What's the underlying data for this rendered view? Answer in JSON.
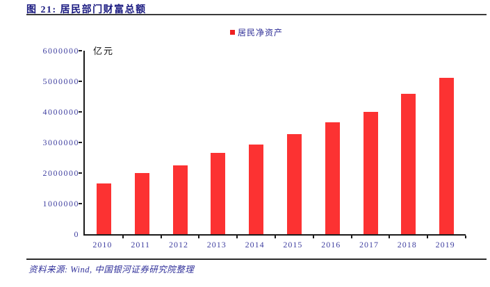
{
  "page": {
    "title": "图 21: 居民部门财富总额",
    "source_note": "资料来源: Wind, 中国银河证券研究院整理"
  },
  "chart_data": {
    "type": "bar",
    "title": "图 21: 居民部门财富总额",
    "unit_label": "亿元",
    "legend": {
      "position": "top-center",
      "entries": [
        "居民净资产"
      ]
    },
    "categories": [
      "2010",
      "2011",
      "2012",
      "2013",
      "2014",
      "2015",
      "2016",
      "2017",
      "2018",
      "2019"
    ],
    "series": [
      {
        "name": "居民净资产",
        "color": "#fc3232",
        "values": [
          1650000,
          1990000,
          2250000,
          2670000,
          2940000,
          3270000,
          3660000,
          4000000,
          4580000,
          5120000
        ]
      }
    ],
    "xlabel": "",
    "ylabel": "亿元",
    "ylim": [
      0,
      6000000
    ],
    "yticks": [
      0,
      1000000,
      2000000,
      3000000,
      4000000,
      5000000,
      6000000
    ],
    "grid": false
  },
  "colors": {
    "bar_red": "#fc3232",
    "legend_red": "#ee2020",
    "title_navy": "#191980",
    "tick_label_blue": "#3f3fa0",
    "source_blue": "#30309a",
    "axis_black": "#1a1a1a"
  }
}
